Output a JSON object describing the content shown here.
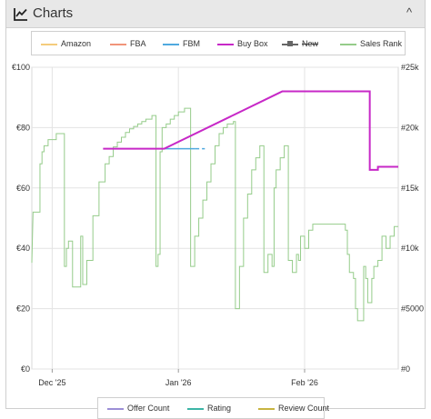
{
  "header": {
    "title": "Charts",
    "icon": "line-chart-icon",
    "collapse_icon": "chevron-up-icon",
    "collapse_glyph": "^"
  },
  "legend": [
    {
      "label": "Amazon",
      "color": "#f4cc7c",
      "style": "line",
      "hidden": false
    },
    {
      "label": "FBA",
      "color": "#f1947a",
      "style": "line",
      "hidden": false
    },
    {
      "label": "FBM",
      "color": "#4fa9df",
      "style": "line",
      "hidden": false
    },
    {
      "label": "Buy Box",
      "color": "#c728c7",
      "style": "line",
      "hidden": false
    },
    {
      "label": "New",
      "color": "#666666",
      "style": "dot",
      "hidden": true
    },
    {
      "label": "Sales Rank",
      "color": "#95cc8a",
      "style": "line",
      "hidden": false
    }
  ],
  "legend2": [
    {
      "label": "Offer Count",
      "color": "#9c8fd6"
    },
    {
      "label": "Rating",
      "color": "#3cb5a6"
    },
    {
      "label": "Review Count",
      "color": "#c7b440"
    }
  ],
  "chart_data": {
    "type": "line",
    "left_axis": {
      "ticks": [
        "€0",
        "€20",
        "€40",
        "€60",
        "€80",
        "€100"
      ],
      "ylim": [
        0,
        100
      ]
    },
    "right_axis": {
      "ticks": [
        "#0",
        "#5000",
        "#10k",
        "#15k",
        "#20k",
        "#25k"
      ],
      "ylim": [
        0,
        25000
      ]
    },
    "x_ticks": [
      {
        "label": "Dec '25",
        "day": 6
      },
      {
        "label": "Jan '26",
        "day": 37
      },
      {
        "label": "Feb '26",
        "day": 68
      }
    ],
    "x_range": [
      1,
      91
    ],
    "grid": true,
    "series": [
      {
        "name": "Buy Box",
        "axis": "left",
        "color": "#c728c7",
        "points": [
          [
            18.5,
            73
          ],
          [
            33.5,
            73
          ],
          [
            33.5,
            73
          ],
          [
            62.5,
            92
          ],
          [
            84,
            92
          ],
          [
            84,
            66
          ],
          [
            86,
            66
          ],
          [
            86,
            67
          ],
          [
            91,
            67
          ]
        ]
      },
      {
        "name": "FBM",
        "axis": "left",
        "color": "#4fa9df",
        "dashed_tail": true,
        "points": [
          [
            33.5,
            73
          ],
          [
            41,
            73
          ],
          [
            43.5,
            73
          ]
        ]
      },
      {
        "name": "Sales Rank",
        "axis": "right",
        "color": "#95cc8a",
        "points": [
          [
            1,
            8800
          ],
          [
            1.3,
            13000
          ],
          [
            3,
            13000
          ],
          [
            3,
            17000
          ],
          [
            3.5,
            17000
          ],
          [
            3.5,
            18000
          ],
          [
            4,
            18000
          ],
          [
            4,
            18500
          ],
          [
            5,
            18500
          ],
          [
            5,
            19000
          ],
          [
            7,
            19000
          ],
          [
            7,
            19500
          ],
          [
            9,
            19500
          ],
          [
            9,
            8500
          ],
          [
            9.5,
            8500
          ],
          [
            9.5,
            10000
          ],
          [
            10,
            10000
          ],
          [
            10,
            10600
          ],
          [
            11,
            10600
          ],
          [
            11,
            6800
          ],
          [
            13,
            6800
          ],
          [
            13,
            11000
          ],
          [
            13.5,
            11000
          ],
          [
            13.5,
            7000
          ],
          [
            14.5,
            7000
          ],
          [
            14.5,
            9000
          ],
          [
            16,
            9000
          ],
          [
            16,
            12700
          ],
          [
            17.5,
            12700
          ],
          [
            17.5,
            15500
          ],
          [
            19,
            15500
          ],
          [
            19,
            17000
          ],
          [
            20,
            17000
          ],
          [
            20,
            17600
          ],
          [
            21,
            17600
          ],
          [
            21,
            18400
          ],
          [
            22,
            18400
          ],
          [
            22,
            18800
          ],
          [
            23,
            18800
          ],
          [
            23,
            19200
          ],
          [
            24,
            19200
          ],
          [
            24,
            19600
          ],
          [
            25,
            19600
          ],
          [
            25,
            19900
          ],
          [
            26,
            19900
          ],
          [
            26,
            20100
          ],
          [
            27,
            20100
          ],
          [
            27,
            20300
          ],
          [
            28,
            20300
          ],
          [
            28,
            20500
          ],
          [
            29,
            20500
          ],
          [
            29,
            20700
          ],
          [
            30.5,
            20700
          ],
          [
            30.5,
            21000
          ],
          [
            31,
            21000
          ],
          [
            31.5,
            21000
          ],
          [
            31.5,
            8500
          ],
          [
            32,
            8500
          ],
          [
            32,
            9500
          ],
          [
            32.5,
            9500
          ],
          [
            32.5,
            18000
          ],
          [
            33,
            18000
          ],
          [
            33,
            20000
          ],
          [
            34,
            20000
          ],
          [
            34,
            20300
          ],
          [
            35,
            20300
          ],
          [
            35,
            20700
          ],
          [
            36,
            20700
          ],
          [
            36,
            21000
          ],
          [
            37,
            21000
          ],
          [
            37,
            21300
          ],
          [
            38.5,
            21300
          ],
          [
            38.5,
            21600
          ],
          [
            40,
            21600
          ],
          [
            40,
            8500
          ],
          [
            41,
            8500
          ],
          [
            41,
            11000
          ],
          [
            42,
            11000
          ],
          [
            42,
            12500
          ],
          [
            43,
            12500
          ],
          [
            43,
            14000
          ],
          [
            44,
            14000
          ],
          [
            44,
            15500
          ],
          [
            45,
            15500
          ],
          [
            45,
            17000
          ],
          [
            46,
            17000
          ],
          [
            46,
            18500
          ],
          [
            47,
            18500
          ],
          [
            47,
            19500
          ],
          [
            48,
            19500
          ],
          [
            48,
            20000
          ],
          [
            49,
            20000
          ],
          [
            49,
            20300
          ],
          [
            50.5,
            20300
          ],
          [
            50.5,
            20500
          ],
          [
            51,
            20500
          ],
          [
            51,
            5000
          ],
          [
            52,
            5000
          ],
          [
            52,
            8500
          ],
          [
            53,
            8500
          ],
          [
            53,
            12500
          ],
          [
            54,
            12500
          ],
          [
            54,
            14500
          ],
          [
            55,
            14500
          ],
          [
            55,
            16500
          ],
          [
            56,
            16500
          ],
          [
            56,
            17500
          ],
          [
            57,
            17500
          ],
          [
            57,
            18500
          ],
          [
            58,
            18500
          ],
          [
            58,
            8000
          ],
          [
            59,
            8000
          ],
          [
            59,
            9500
          ],
          [
            60,
            9500
          ],
          [
            60,
            8500
          ],
          [
            60.5,
            8500
          ],
          [
            60.5,
            15000
          ],
          [
            61,
            15000
          ],
          [
            61,
            16500
          ],
          [
            62,
            16500
          ],
          [
            62,
            17500
          ],
          [
            63,
            17500
          ],
          [
            63,
            18500
          ],
          [
            64,
            18500
          ],
          [
            64,
            9000
          ],
          [
            65,
            9000
          ],
          [
            65,
            8000
          ],
          [
            66,
            8000
          ],
          [
            66,
            9500
          ],
          [
            66.5,
            9500
          ],
          [
            66.5,
            9000
          ],
          [
            67,
            9000
          ],
          [
            67,
            11000
          ],
          [
            68,
            11000
          ],
          [
            68,
            10000
          ],
          [
            69,
            10000
          ],
          [
            69,
            11500
          ],
          [
            70,
            11500
          ],
          [
            70,
            12000
          ],
          [
            78,
            12000
          ],
          [
            78,
            11500
          ],
          [
            78.5,
            11500
          ],
          [
            78.5,
            9500
          ],
          [
            79,
            9500
          ],
          [
            79,
            8000
          ],
          [
            80,
            8000
          ],
          [
            80,
            7500
          ],
          [
            80.5,
            7500
          ],
          [
            80.5,
            5000
          ],
          [
            81,
            5000
          ],
          [
            81,
            4000
          ],
          [
            82.5,
            4000
          ],
          [
            82.5,
            8500
          ],
          [
            83,
            8500
          ],
          [
            83,
            7500
          ],
          [
            83.5,
            7500
          ],
          [
            83.5,
            5500
          ],
          [
            84.5,
            5500
          ],
          [
            84.5,
            7500
          ],
          [
            85,
            7500
          ],
          [
            85,
            8500
          ],
          [
            86,
            8500
          ],
          [
            86,
            9000
          ],
          [
            87,
            9000
          ],
          [
            87,
            11000
          ],
          [
            88,
            11000
          ],
          [
            88,
            10000
          ],
          [
            89,
            10000
          ],
          [
            89,
            11000
          ],
          [
            90,
            11000
          ],
          [
            90,
            11800
          ],
          [
            91,
            11800
          ]
        ]
      }
    ]
  }
}
